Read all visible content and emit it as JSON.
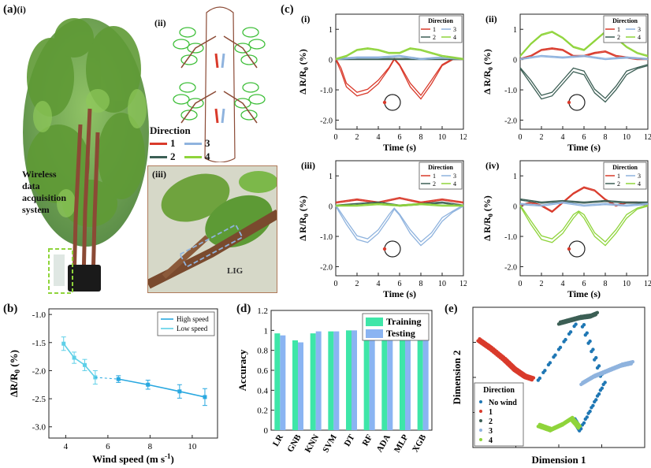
{
  "panels": {
    "a": {
      "letter": "(a)",
      "sub_i": "(i)",
      "sub_ii": "(ii)",
      "sub_iii": "(iii)",
      "wireless_label": [
        "Wireless",
        "data",
        "acquisition",
        "system"
      ],
      "lig_label": "LIG",
      "direction_title": "Direction",
      "direction_items": [
        {
          "num": "1",
          "color": "#d93a2b"
        },
        {
          "num": "2",
          "color": "#3c5f55"
        },
        {
          "num": "3",
          "color": "#8fb3de"
        },
        {
          "num": "4",
          "color": "#8fd43b"
        }
      ]
    },
    "c": {
      "letter": "(c)",
      "subs": [
        "(i)",
        "(ii)",
        "(iii)",
        "(iv)"
      ],
      "ylabel": "Δ R/R",
      "ylabel_sub": "0",
      "ylabel_unit": " (%)",
      "xlabel": "Time (s)",
      "legend_title": "Direction",
      "legend_labels": [
        "1",
        "3",
        "2",
        "4"
      ],
      "yticks": [
        "1",
        "0",
        "-1.0",
        "-2.0"
      ],
      "xticks": [
        "0",
        "2",
        "4",
        "6",
        "8",
        "10",
        "12"
      ]
    },
    "b": {
      "letter": "(b)",
      "ylabel": "ΔR/R",
      "ylabel_sub": "0",
      "ylabel_unit": " (%)",
      "xlabel": "Wind speed (m s",
      "xlabel_sup": "-1",
      "xlabel_end": ")",
      "legend": [
        "High speed",
        "Low speed"
      ]
    },
    "d": {
      "letter": "(d)",
      "ylabel": "Accuracy",
      "legend": [
        "Training",
        "Testing"
      ]
    },
    "e": {
      "letter": "(e)",
      "xlabel": "Dimension 1",
      "ylabel": "Dimension 2",
      "legend_title": "Direction",
      "legend_items": [
        "No wind",
        "1",
        "2",
        "3",
        "4"
      ]
    }
  },
  "colors": {
    "dir1": "#d93a2b",
    "dir2": "#3c5f55",
    "dir3": "#8fb3de",
    "dir4": "#8fd43b",
    "nowind": "#1f77b4",
    "train": "#3ee6a8",
    "test": "#8ab4f2",
    "line_b": "#29a8e0"
  },
  "chart_data": [
    {
      "id": "c-i",
      "type": "line",
      "xlabel": "Time (s)",
      "ylabel": "Δ R/R0 (%)",
      "xlim": [
        0,
        12
      ],
      "ylim": [
        -2.3,
        1.5
      ],
      "series": [
        {
          "name": "1",
          "x": [
            0,
            0.5,
            1,
            2,
            3,
            4,
            5,
            5.5,
            6,
            7,
            8,
            9,
            10,
            11,
            12
          ],
          "y": [
            0,
            -0.4,
            -0.9,
            -1.2,
            -1.1,
            -0.8,
            -0.3,
            0,
            -0.2,
            -0.9,
            -1.3,
            -0.8,
            -0.2,
            0,
            0
          ]
        },
        {
          "name": "2",
          "x": [
            0,
            2,
            4,
            6,
            8,
            10,
            12
          ],
          "y": [
            0,
            0,
            0,
            0,
            0,
            0,
            0
          ]
        },
        {
          "name": "3",
          "x": [
            0,
            2,
            4,
            6,
            8,
            10,
            12
          ],
          "y": [
            0,
            0.05,
            0.05,
            0.1,
            0,
            0.05,
            0
          ]
        },
        {
          "name": "4",
          "x": [
            0,
            1,
            2,
            3,
            4,
            5,
            6,
            7,
            8,
            9,
            10,
            11,
            12
          ],
          "y": [
            0,
            0.1,
            0.3,
            0.35,
            0.3,
            0.2,
            0.2,
            0.35,
            0.3,
            0.2,
            0.1,
            0.05,
            0
          ]
        }
      ]
    },
    {
      "id": "c-ii",
      "type": "line",
      "xlabel": "Time (s)",
      "ylabel": "Δ R/R0 (%)",
      "xlim": [
        0,
        12
      ],
      "ylim": [
        -2.3,
        1.5
      ],
      "series": [
        {
          "name": "1",
          "x": [
            0,
            1,
            2,
            3,
            4,
            5,
            6,
            7,
            8,
            9,
            10,
            11,
            12
          ],
          "y": [
            0,
            0.1,
            0.3,
            0.35,
            0.3,
            0.1,
            0.1,
            0.2,
            0.25,
            0.1,
            0.05,
            0,
            0
          ]
        },
        {
          "name": "2",
          "x": [
            0,
            1,
            2,
            3,
            4,
            5,
            6,
            7,
            8,
            9,
            10,
            11,
            12
          ],
          "y": [
            -0.3,
            -0.8,
            -1.3,
            -1.2,
            -0.8,
            -0.4,
            -0.5,
            -1.1,
            -1.4,
            -1.0,
            -0.5,
            -0.3,
            -0.2
          ]
        },
        {
          "name": "3",
          "x": [
            0,
            2,
            4,
            6,
            8,
            10,
            12
          ],
          "y": [
            0,
            0.1,
            0.05,
            0.1,
            0,
            0.05,
            0
          ]
        },
        {
          "name": "4",
          "x": [
            0,
            1,
            2,
            3,
            4,
            5,
            6,
            7,
            8,
            9,
            10,
            11,
            12
          ],
          "y": [
            0.1,
            0.5,
            0.8,
            0.9,
            0.7,
            0.4,
            0.3,
            0.6,
            0.9,
            0.7,
            0.4,
            0.2,
            0.1
          ]
        }
      ]
    },
    {
      "id": "c-iii",
      "type": "line",
      "xlabel": "Time (s)",
      "ylabel": "Δ R/R0 (%)",
      "xlim": [
        0,
        12
      ],
      "ylim": [
        -2.3,
        1.5
      ],
      "series": [
        {
          "name": "1",
          "x": [
            0,
            2,
            4,
            6,
            8,
            10,
            12
          ],
          "y": [
            0.1,
            0.2,
            0.1,
            0.25,
            0.1,
            0.2,
            0.1
          ]
        },
        {
          "name": "2",
          "x": [
            0,
            2,
            4,
            6,
            8,
            10,
            12
          ],
          "y": [
            0,
            0.05,
            0.1,
            0,
            0.05,
            0.1,
            0
          ]
        },
        {
          "name": "3",
          "x": [
            0,
            1,
            2,
            3,
            4,
            5,
            5.5,
            6,
            7,
            8,
            9,
            10,
            11,
            12
          ],
          "y": [
            0,
            -0.6,
            -1.1,
            -1.2,
            -0.9,
            -0.4,
            -0.1,
            -0.3,
            -0.9,
            -1.3,
            -1.0,
            -0.5,
            -0.2,
            0
          ]
        },
        {
          "name": "4",
          "x": [
            0,
            2,
            4,
            6,
            8,
            10,
            12
          ],
          "y": [
            0,
            0,
            0.05,
            0,
            0.05,
            0,
            0
          ]
        }
      ]
    },
    {
      "id": "c-iv",
      "type": "line",
      "xlabel": "Time (s)",
      "ylabel": "Δ R/R0 (%)",
      "xlim": [
        0,
        12
      ],
      "ylim": [
        -2.3,
        1.5
      ],
      "series": [
        {
          "name": "1",
          "x": [
            0,
            1,
            2,
            3,
            4,
            5,
            6,
            7,
            8,
            9,
            10,
            11,
            12
          ],
          "y": [
            0,
            0.1,
            0,
            -0.2,
            0.1,
            0.4,
            0.6,
            0.5,
            0.2,
            0,
            0.1,
            0.1,
            0
          ]
        },
        {
          "name": "2",
          "x": [
            0,
            2,
            4,
            6,
            8,
            10,
            12
          ],
          "y": [
            0.2,
            0.1,
            0.15,
            0.1,
            0.15,
            0.1,
            0.1
          ]
        },
        {
          "name": "3",
          "x": [
            0,
            2,
            4,
            6,
            8,
            10,
            12
          ],
          "y": [
            0.05,
            0,
            0.1,
            0,
            0.05,
            0,
            0.05
          ]
        },
        {
          "name": "4",
          "x": [
            0,
            1,
            2,
            3,
            4,
            5,
            5.5,
            6,
            7,
            8,
            9,
            10,
            11,
            12
          ],
          "y": [
            0,
            -0.6,
            -1.1,
            -1.2,
            -0.9,
            -0.4,
            -0.2,
            -0.4,
            -1.0,
            -1.3,
            -0.9,
            -0.4,
            -0.1,
            0
          ]
        }
      ]
    },
    {
      "id": "b",
      "type": "line",
      "xlabel": "Wind speed (m s-1)",
      "ylabel": "ΔR/R0 (%)",
      "xlim": [
        3.2,
        11.2
      ],
      "ylim": [
        -3.2,
        -0.9
      ],
      "yticks": [
        -1.0,
        -1.5,
        -2.0,
        -2.5,
        -3.0
      ],
      "xticks": [
        4,
        6,
        8,
        10
      ],
      "series": [
        {
          "name": "High speed",
          "x": [
            6.5,
            7.9,
            9.4,
            10.6
          ],
          "y": [
            -2.15,
            -2.25,
            -2.37,
            -2.47
          ],
          "err": [
            0.06,
            0.08,
            0.12,
            0.15
          ]
        },
        {
          "name": "Low speed",
          "x": [
            3.9,
            4.4,
            4.9,
            5.4
          ],
          "y": [
            -1.52,
            -1.77,
            -1.9,
            -2.12
          ],
          "err": [
            0.12,
            0.1,
            0.1,
            0.12
          ]
        }
      ]
    },
    {
      "id": "d",
      "type": "bar",
      "ylabel": "Accuracy",
      "ylim": [
        0,
        1.2
      ],
      "yticks": [
        0,
        0.2,
        0.4,
        0.6,
        0.8,
        1,
        1.2
      ],
      "categories": [
        "LR",
        "GNB",
        "KNN",
        "SVM",
        "DT",
        "RF",
        "ADA",
        "MLP",
        "XGB"
      ],
      "series": [
        {
          "name": "Training",
          "values": [
            0.97,
            0.9,
            0.97,
            0.99,
            1.0,
            1.0,
            1.0,
            0.98,
            1.0
          ]
        },
        {
          "name": "Testing",
          "values": [
            0.95,
            0.88,
            0.99,
            0.99,
            1.0,
            1.0,
            0.99,
            0.97,
            1.0
          ]
        }
      ]
    },
    {
      "id": "e",
      "type": "scatter",
      "xlabel": "Dimension 1",
      "ylabel": "Dimension 2",
      "series": [
        {
          "name": "No wind",
          "x": [
            0.38,
            0.62,
            0.76,
            0.62,
            0.58
          ],
          "y": [
            0.48,
            0.92,
            0.45,
            0.12,
            0.2
          ]
        },
        {
          "name": "1",
          "x": [
            0.03,
            0.1,
            0.18,
            0.24,
            0.3,
            0.35
          ],
          "y": [
            0.76,
            0.7,
            0.62,
            0.55,
            0.5,
            0.48
          ]
        },
        {
          "name": "2",
          "x": [
            0.5,
            0.56,
            0.62,
            0.68,
            0.72
          ],
          "y": [
            0.88,
            0.9,
            0.92,
            0.93,
            0.95
          ]
        },
        {
          "name": "3",
          "x": [
            0.63,
            0.7,
            0.78,
            0.86,
            0.93
          ],
          "y": [
            0.45,
            0.5,
            0.54,
            0.58,
            0.6
          ]
        },
        {
          "name": "4",
          "x": [
            0.38,
            0.45,
            0.52,
            0.57,
            0.62
          ],
          "y": [
            0.15,
            0.12,
            0.16,
            0.2,
            0.13
          ]
        }
      ]
    }
  ]
}
